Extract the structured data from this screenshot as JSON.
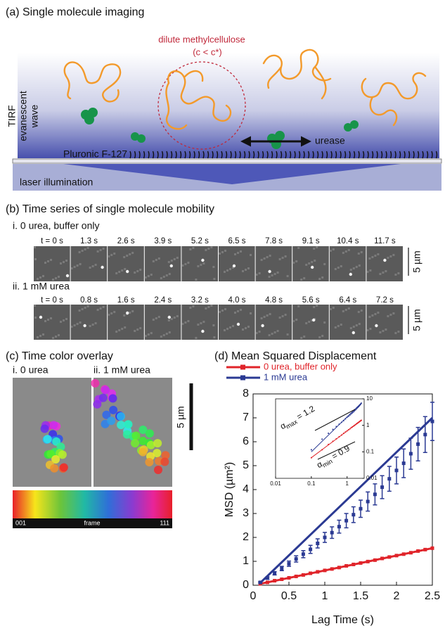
{
  "panel_a": {
    "title": "(a) Single molecule imaging",
    "polymer_label": "dilute methylcellulose",
    "polymer_condition": "(c < c*)",
    "tirf_label": [
      "TIRF",
      "evanescent",
      "wave"
    ],
    "surface_label": "Pluronic F-127",
    "enzyme_label": "urease",
    "laser_label": "laser illumination"
  },
  "panel_b": {
    "title": "(b) Time series of single molecule mobility",
    "scale_label": "5 µm",
    "rows": [
      {
        "label": "i. 0 urea, buffer only",
        "times": [
          "t = 0 s",
          "1.3 s",
          "2.6 s",
          "3.9 s",
          "5.2 s",
          "6.5 s",
          "7.8 s",
          "9.1 s",
          "10.4 s",
          "11.7 s"
        ]
      },
      {
        "label": "ii. 1 mM urea",
        "times": [
          "t = 0 s",
          "0.8 s",
          "1.6 s",
          "2.4 s",
          "3.2 s",
          "4.0 s",
          "4.8 s",
          "5.6 s",
          "6.4 s",
          "7.2 s"
        ]
      }
    ]
  },
  "panel_c": {
    "title": "(c) Time color overlay",
    "labels": [
      "i. 0 urea",
      "ii. 1 mM urea"
    ],
    "scale_label": "5 µm",
    "colorbar_labels": [
      "001",
      "frame",
      "111"
    ]
  },
  "chart_data": {
    "type": "scatter",
    "title": "(d) Mean Squared Displacement",
    "x_label": "Lag Time (s)",
    "y_label": "MSD (µm²)",
    "x": [
      0.1,
      0.2,
      0.3,
      0.4,
      0.5,
      0.6,
      0.7,
      0.8,
      0.9,
      1.0,
      1.1,
      1.2,
      1.3,
      1.4,
      1.5,
      1.6,
      1.7,
      1.8,
      1.9,
      2.0,
      2.1,
      2.2,
      2.3,
      2.4,
      2.5
    ],
    "series": [
      {
        "name": "0 urea, buffer only",
        "color": "#e0242a",
        "values": [
          0.06,
          0.12,
          0.19,
          0.25,
          0.31,
          0.37,
          0.43,
          0.5,
          0.56,
          0.62,
          0.68,
          0.74,
          0.81,
          0.87,
          0.93,
          0.99,
          1.05,
          1.12,
          1.18,
          1.24,
          1.3,
          1.36,
          1.43,
          1.49,
          1.55
        ],
        "fit": {
          "x": [
            0.1,
            2.5
          ],
          "values": [
            0.06,
            1.55
          ]
        }
      },
      {
        "name": "1 mM urea",
        "color": "#2b3a93",
        "values": [
          0.12,
          0.3,
          0.5,
          0.7,
          0.9,
          1.1,
          1.3,
          1.5,
          1.75,
          2.0,
          2.2,
          2.45,
          2.7,
          2.95,
          3.2,
          3.5,
          3.8,
          4.1,
          4.45,
          4.8,
          5.1,
          5.5,
          5.9,
          6.3,
          6.85
        ],
        "errors": [
          0.03,
          0.05,
          0.07,
          0.09,
          0.11,
          0.13,
          0.15,
          0.17,
          0.19,
          0.21,
          0.24,
          0.27,
          0.3,
          0.33,
          0.36,
          0.4,
          0.44,
          0.48,
          0.52,
          0.56,
          0.6,
          0.65,
          0.7,
          0.75,
          0.8
        ],
        "fit": {
          "x": [
            0.1,
            2.5
          ],
          "values": [
            0.1,
            7.0
          ]
        }
      }
    ],
    "xlim": [
      0,
      2.5
    ],
    "xticks": [
      0,
      0.5,
      1,
      1.5,
      2,
      2.5
    ],
    "ylim": [
      0,
      8
    ],
    "yticks": [
      0,
      1,
      2,
      3,
      4,
      5,
      6,
      7,
      8
    ],
    "inset": {
      "log_scale": true,
      "xlim": [
        0.01,
        3
      ],
      "xticks": [
        0.01,
        0.1,
        1
      ],
      "ylim": [
        0.01,
        10
      ],
      "yticks": [
        0.01,
        0.1,
        1,
        10
      ],
      "annotations": [
        {
          "symbol": "α",
          "sub": "max",
          "text": " = 1.2"
        },
        {
          "symbol": "α",
          "sub": "min",
          "text": " = 0.9"
        }
      ]
    }
  }
}
